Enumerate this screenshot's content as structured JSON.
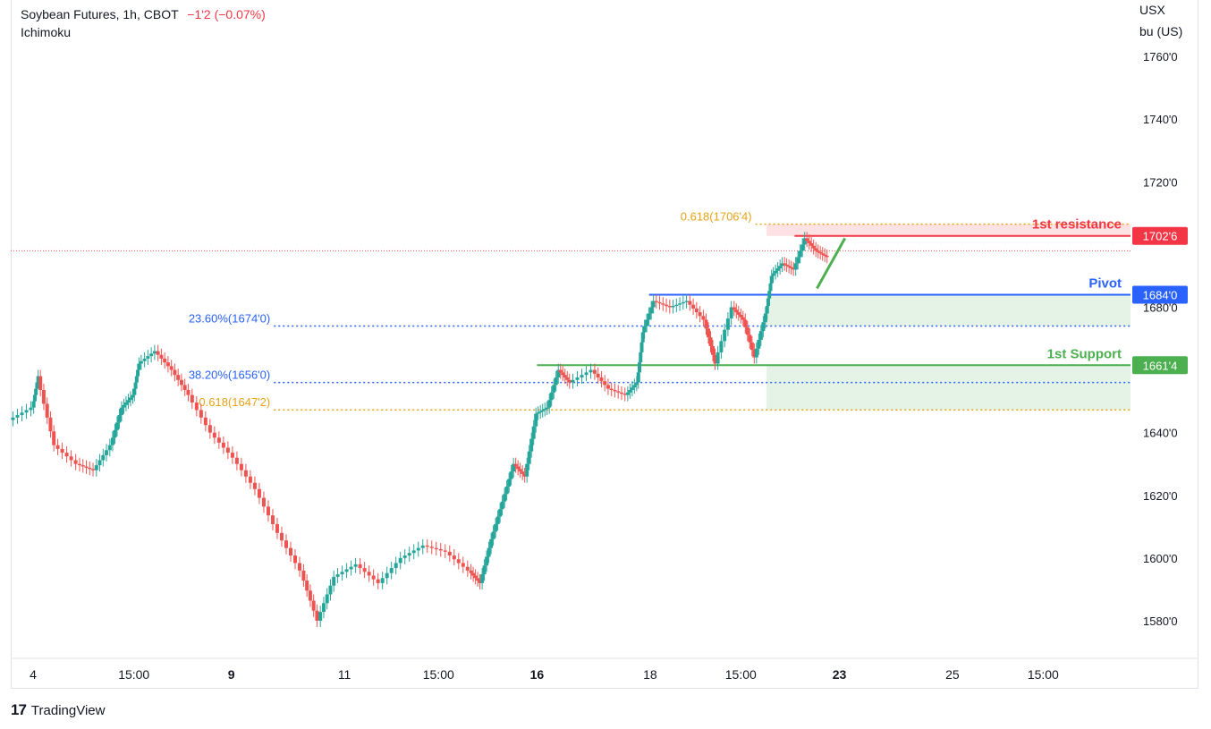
{
  "header": {
    "symbol": "Soybean Futures, 1h, CBOT",
    "change": "−1'2 (−0.07%)",
    "indicator": "Ichimoku"
  },
  "footer": {
    "brand": "TradingView"
  },
  "colors": {
    "up": "#26a69a",
    "down": "#ef5350",
    "resistance": "#f23645",
    "pivot": "#2962ff",
    "support": "#4caf50",
    "fib_blue": "#2962ff",
    "fib_orange": "#e8a317"
  },
  "chart_data": {
    "type": "candlestick",
    "title": "Soybean Futures, 1h, CBOT",
    "y_axis": {
      "unit_line1": "USX",
      "unit_line2": "bu (US)",
      "range": [
        1568,
        1778
      ],
      "ticks": [
        {
          "value": 1760,
          "label": "1760'0"
        },
        {
          "value": 1740,
          "label": "1740'0"
        },
        {
          "value": 1720,
          "label": "1720'0"
        },
        {
          "value": 1680,
          "label": "1680'0"
        },
        {
          "value": 1640,
          "label": "1640'0"
        },
        {
          "value": 1620,
          "label": "1620'0"
        },
        {
          "value": 1600,
          "label": "1600'0"
        },
        {
          "value": 1580,
          "label": "1580'0"
        }
      ]
    },
    "x_axis": {
      "ticks": [
        {
          "pos": 0.02,
          "label": "4",
          "bold": false
        },
        {
          "pos": 0.11,
          "label": "15:00",
          "bold": false
        },
        {
          "pos": 0.197,
          "label": "9",
          "bold": true
        },
        {
          "pos": 0.298,
          "label": "11",
          "bold": false
        },
        {
          "pos": 0.382,
          "label": "15:00",
          "bold": false
        },
        {
          "pos": 0.47,
          "label": "16",
          "bold": true
        },
        {
          "pos": 0.571,
          "label": "18",
          "bold": false
        },
        {
          "pos": 0.652,
          "label": "15:00",
          "bold": false
        },
        {
          "pos": 0.74,
          "label": "23",
          "bold": true
        },
        {
          "pos": 0.841,
          "label": "25",
          "bold": false
        },
        {
          "pos": 0.922,
          "label": "15:00",
          "bold": false
        }
      ]
    },
    "price_path": [
      [
        0.0,
        1644
      ],
      [
        0.02,
        1648
      ],
      [
        0.025,
        1658
      ],
      [
        0.04,
        1636
      ],
      [
        0.06,
        1630
      ],
      [
        0.075,
        1628
      ],
      [
        0.09,
        1636
      ],
      [
        0.1,
        1648
      ],
      [
        0.11,
        1652
      ],
      [
        0.115,
        1662
      ],
      [
        0.13,
        1666
      ],
      [
        0.145,
        1660
      ],
      [
        0.16,
        1652
      ],
      [
        0.18,
        1640
      ],
      [
        0.2,
        1632
      ],
      [
        0.22,
        1622
      ],
      [
        0.24,
        1608
      ],
      [
        0.26,
        1596
      ],
      [
        0.275,
        1580
      ],
      [
        0.29,
        1594
      ],
      [
        0.31,
        1598
      ],
      [
        0.33,
        1592
      ],
      [
        0.35,
        1600
      ],
      [
        0.37,
        1604
      ],
      [
        0.39,
        1602
      ],
      [
        0.41,
        1596
      ],
      [
        0.42,
        1592
      ],
      [
        0.43,
        1606
      ],
      [
        0.44,
        1618
      ],
      [
        0.45,
        1630
      ],
      [
        0.46,
        1626
      ],
      [
        0.47,
        1646
      ],
      [
        0.48,
        1648
      ],
      [
        0.49,
        1660
      ],
      [
        0.5,
        1656
      ],
      [
        0.52,
        1660
      ],
      [
        0.535,
        1654
      ],
      [
        0.55,
        1652
      ],
      [
        0.56,
        1656
      ],
      [
        0.565,
        1672
      ],
      [
        0.575,
        1682
      ],
      [
        0.59,
        1680
      ],
      [
        0.605,
        1682
      ],
      [
        0.62,
        1676
      ],
      [
        0.63,
        1662
      ],
      [
        0.645,
        1680
      ],
      [
        0.655,
        1676
      ],
      [
        0.665,
        1664
      ],
      [
        0.675,
        1678
      ],
      [
        0.68,
        1690
      ],
      [
        0.69,
        1694
      ],
      [
        0.7,
        1692
      ],
      [
        0.71,
        1702
      ],
      [
        0.72,
        1698
      ],
      [
        0.73,
        1696
      ]
    ],
    "fibonacci": [
      {
        "label": "23.60%(1674'0)",
        "value": 1674,
        "color": "blue"
      },
      {
        "label": "38.20%(1656'0)",
        "value": 1656,
        "color": "blue"
      },
      {
        "label": "0.618(1647'2)",
        "value": 1647.25,
        "color": "orange"
      },
      {
        "label": "0.618(1706'4)",
        "value": 1706.5,
        "color": "orange"
      }
    ],
    "levels": [
      {
        "name": "1st resistance",
        "value": 1702.75,
        "tag": "1702'6",
        "color": "resistance"
      },
      {
        "name": "Pivot",
        "value": 1684,
        "tag": "1684'0",
        "color": "pivot"
      },
      {
        "name": "1st Support",
        "value": 1661.5,
        "tag": "1661'4",
        "color": "support"
      }
    ],
    "zones": [
      {
        "top": 1706.5,
        "bottom": 1702.75,
        "color": "resistance"
      },
      {
        "top": 1684,
        "bottom": 1674,
        "color": "support"
      },
      {
        "top": 1661.5,
        "bottom": 1647.25,
        "color": "support"
      }
    ],
    "current_price": 1698
  }
}
